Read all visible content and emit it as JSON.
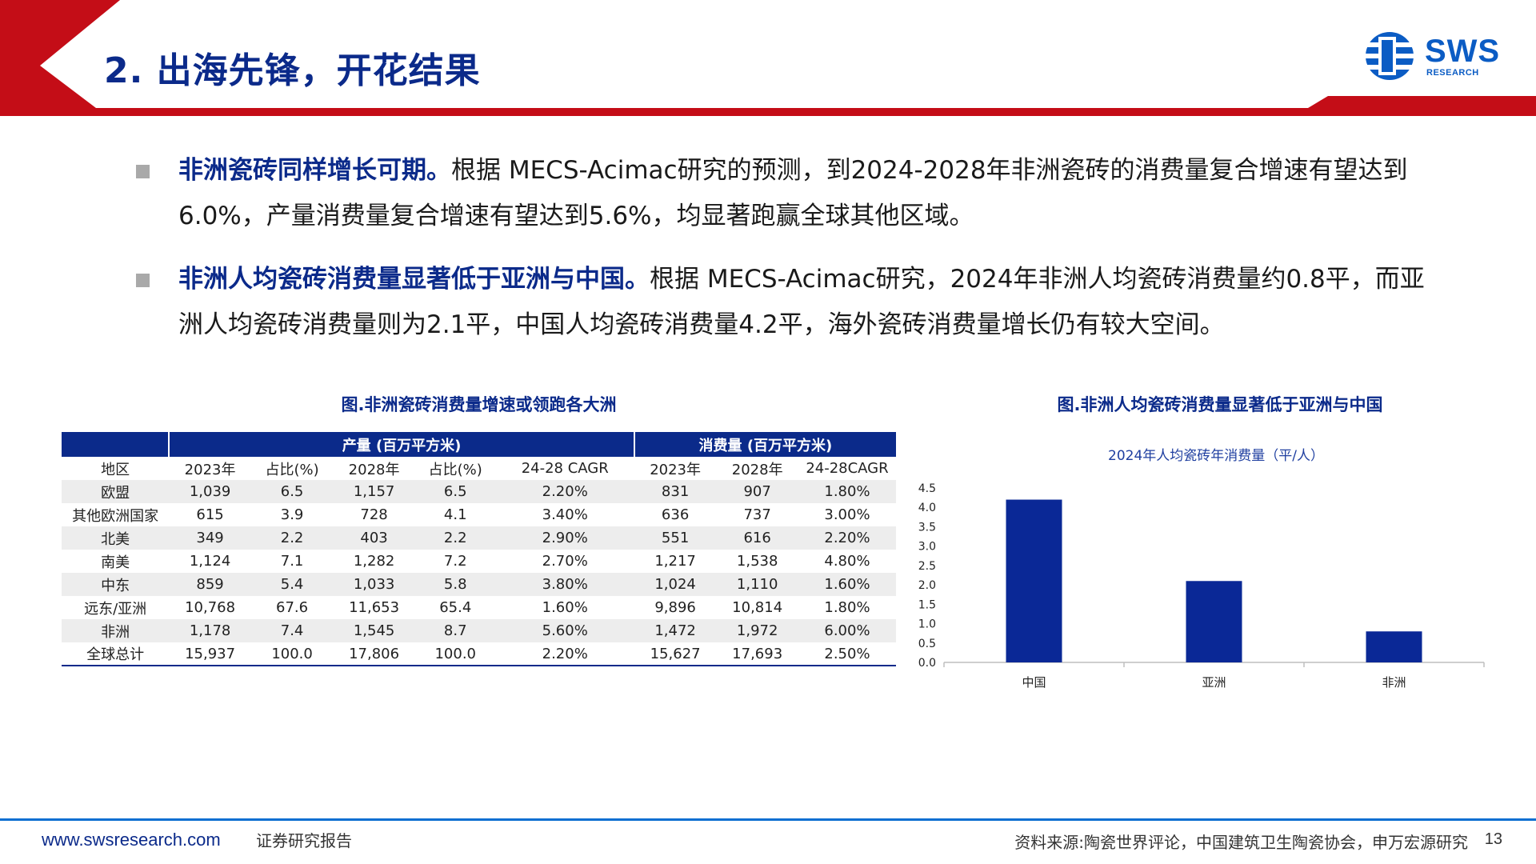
{
  "header": {
    "title": "2. 出海先锋，开花结果",
    "logo_text": "SWS",
    "logo_sub": "RESEARCH"
  },
  "colors": {
    "navy": "#0b2a8a",
    "red": "#c40d17",
    "bar": "#0a2896",
    "bullet_gray": "#a9a9a9"
  },
  "bullets": [
    {
      "lead": "非洲瓷砖同样增长可期。",
      "text": "根据 MECS-Acimac研究的预测，到2024-2028年非洲瓷砖的消费量复合增速有望达到6.0%，产量消费量复合增速有望达到5.6%，均显著跑赢全球其他区域。"
    },
    {
      "lead": "非洲人均瓷砖消费量显著低于亚洲与中国。",
      "text": "根据 MECS-Acimac研究，2024年非洲人均瓷砖消费量约0.8平，而亚洲人均瓷砖消费量则为2.1平，中国人均瓷砖消费量4.2平，海外瓷砖消费量增长仍有较大空间。"
    }
  ],
  "table": {
    "title": "图.非洲瓷砖消费量增速或领跑各大洲",
    "group_production": "产量 (百万平方米)",
    "group_consumption": "消费量 (百万平方米)",
    "headers": [
      "地区",
      "2023年",
      "占比(%)",
      "2028年",
      "占比(%)",
      "24-28 CAGR",
      "2023年",
      "2028年",
      "24-28CAGR"
    ],
    "rows": [
      [
        "欧盟",
        "1,039",
        "6.5",
        "1,157",
        "6.5",
        "2.20%",
        "831",
        "907",
        "1.80%"
      ],
      [
        "其他欧洲国家",
        "615",
        "3.9",
        "728",
        "4.1",
        "3.40%",
        "636",
        "737",
        "3.00%"
      ],
      [
        "北美",
        "349",
        "2.2",
        "403",
        "2.2",
        "2.90%",
        "551",
        "616",
        "2.20%"
      ],
      [
        "南美",
        "1,124",
        "7.1",
        "1,282",
        "7.2",
        "2.70%",
        "1,217",
        "1,538",
        "4.80%"
      ],
      [
        "中东",
        "859",
        "5.4",
        "1,033",
        "5.8",
        "3.80%",
        "1,024",
        "1,110",
        "1.60%"
      ],
      [
        "远东/亚洲",
        "10,768",
        "67.6",
        "11,653",
        "65.4",
        "1.60%",
        "9,896",
        "10,814",
        "1.80%"
      ],
      [
        "非洲",
        "1,178",
        "7.4",
        "1,545",
        "8.7",
        "5.60%",
        "1,472",
        "1,972",
        "6.00%"
      ],
      [
        "全球总计",
        "15,937",
        "100.0",
        "17,806",
        "100.0",
        "2.20%",
        "15,627",
        "17,693",
        "2.50%"
      ]
    ]
  },
  "chart_figure_title": "图.非洲人均瓷砖消费量显著低于亚洲与中国",
  "chart_data": {
    "type": "bar",
    "title": "2024年人均瓷砖年消费量（平/人）",
    "categories": [
      "中国",
      "亚洲",
      "非洲"
    ],
    "values": [
      4.2,
      2.1,
      0.8
    ],
    "ylim": [
      0,
      4.5
    ],
    "yticks": [
      "0.0",
      "0.5",
      "1.0",
      "1.5",
      "2.0",
      "2.5",
      "3.0",
      "3.5",
      "4.0",
      "4.5"
    ],
    "xlabel": "",
    "ylabel": "",
    "grid": false,
    "legend": "none"
  },
  "footer": {
    "url": "www.swsresearch.com",
    "doc_type": "证券研究报告",
    "source": "资料来源:陶瓷世界评论，中国建筑卫生陶瓷协会，申万宏源研究",
    "page": "13"
  }
}
